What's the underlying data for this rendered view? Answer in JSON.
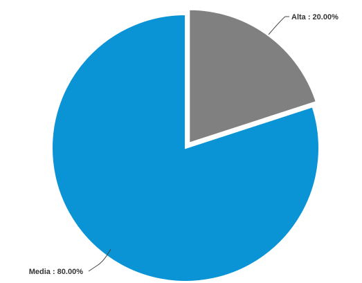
{
  "chart_data": {
    "type": "pie",
    "title": "",
    "slices": [
      {
        "label": "Alta",
        "value": 20.0,
        "display": "Alta : 20.00%",
        "color": "#808080",
        "exploded": true
      },
      {
        "label": "Media",
        "value": 80.0,
        "display": "Media : 80.00%",
        "color": "#0a94d6",
        "exploded": false
      }
    ],
    "legend": "none"
  }
}
